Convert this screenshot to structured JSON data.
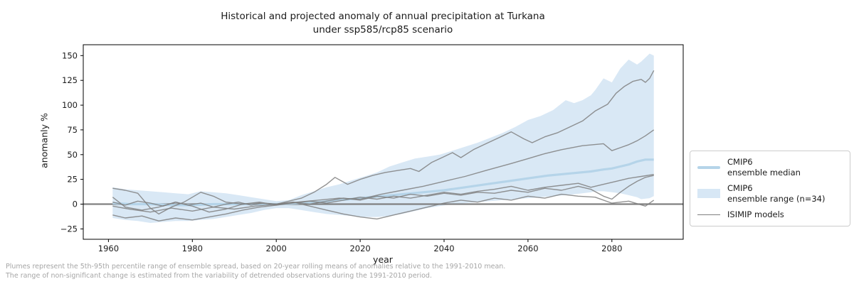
{
  "title": {
    "line1": "Historical and projected anomaly of annual precipitation at Turkana",
    "line2": "under ssp585/rcp85 scenario"
  },
  "axes": {
    "xlabel": "year",
    "ylabel": "anomanly %"
  },
  "legend": {
    "items": [
      {
        "line1": "CMIP6",
        "line2": "ensemble median",
        "swatch": "median-line-swatch"
      },
      {
        "line1": "CMIP6",
        "line2": "ensemble range (n=34)",
        "swatch": "range-patch-swatch"
      },
      {
        "line1": "ISIMIP models",
        "line2": "",
        "swatch": "gray-line-swatch"
      }
    ]
  },
  "footnote": {
    "line1": "Plumes represent the 5th-95th percentile range of ensemble spread, based on 20-year rolling means of anomalies relative to the 1991-2010 mean.",
    "line2": "The range of non-significant change is estimated from the variability of detrended observations during the 1991-2010 period."
  },
  "chart_data": {
    "type": "line",
    "title": "Historical and projected anomaly of annual precipitation at Turkana under ssp585/rcp85 scenario",
    "xlabel": "year",
    "ylabel": "anomanly %",
    "xlim": [
      1954,
      2097
    ],
    "ylim": [
      -35.5,
      161
    ],
    "x_ticks": [
      1960,
      1980,
      2000,
      2020,
      2040,
      2060,
      2080
    ],
    "y_ticks": [
      -25,
      0,
      25,
      50,
      75,
      100,
      125,
      150
    ],
    "grid": false,
    "legend_position": "outside-right",
    "zero_line": 0,
    "colors": {
      "band": "#d9e8f5",
      "median": "#b5d4e9",
      "isimip": "#7f7f7f",
      "zero": "#808080",
      "spine": "#000000"
    },
    "band": {
      "name": "CMIP6 ensemble range (n=34)",
      "x": [
        1961,
        1964,
        1967,
        1970,
        1973,
        1976,
        1979,
        1982,
        1985,
        1988,
        1991,
        1994,
        1997,
        2000,
        2003,
        2006,
        2009,
        2012,
        2015,
        2018,
        2021,
        2024,
        2027,
        2030,
        2033,
        2036,
        2039,
        2042,
        2045,
        2048,
        2051,
        2054,
        2057,
        2060,
        2063,
        2066,
        2069,
        2071,
        2073,
        2075,
        2076,
        2078,
        2080,
        2082,
        2084,
        2086,
        2087,
        2089,
        2090
      ],
      "upper": [
        17,
        15,
        14,
        13,
        12,
        11,
        10,
        13,
        12,
        11,
        9,
        7,
        5,
        3,
        4,
        9,
        13,
        17,
        20,
        24,
        28,
        32,
        38,
        42,
        46,
        48,
        50,
        54,
        58,
        62,
        67,
        72,
        78,
        85,
        89,
        95,
        105,
        102,
        105,
        110,
        115,
        127,
        123,
        137,
        146,
        141,
        144,
        152,
        150
      ],
      "lower": [
        -14,
        -16,
        -17,
        -19,
        -18,
        -17,
        -17,
        -16,
        -15,
        -13,
        -11,
        -9,
        -6,
        -4,
        -4,
        -6,
        -8,
        -10,
        -11,
        -12,
        -13,
        -13,
        -12,
        -10,
        -7,
        -4,
        -2,
        0,
        1,
        2,
        3,
        4,
        5,
        6,
        7,
        8,
        9,
        10,
        11,
        12,
        13,
        13,
        12,
        11,
        9,
        7,
        5,
        6,
        8
      ]
    },
    "median": {
      "name": "CMIP6 ensemble median",
      "x": [
        1961,
        1965,
        1970,
        1975,
        1980,
        1985,
        1990,
        1995,
        2000,
        2005,
        2010,
        2015,
        2020,
        2025,
        2030,
        2035,
        2040,
        2045,
        2050,
        2055,
        2060,
        2065,
        2070,
        2075,
        2078,
        2080,
        2082,
        2084,
        2086,
        2088,
        2090
      ],
      "y": [
        1,
        0,
        0,
        -1,
        -1,
        0,
        0,
        0,
        0,
        1,
        2,
        4,
        6,
        8,
        10,
        12,
        14,
        17,
        20,
        23,
        26,
        29,
        31,
        33,
        35,
        36,
        38,
        40,
        43,
        45,
        45
      ]
    },
    "isimip": {
      "name": "ISIMIP models",
      "series": [
        {
          "x": [
            1961,
            1964,
            1967,
            1970,
            1973,
            1976,
            1979,
            1982,
            1985,
            1988,
            1991,
            1994,
            1997,
            2000,
            2003,
            2006,
            2009,
            2012,
            2014,
            2017,
            2020,
            2023,
            2026,
            2029,
            2032,
            2034,
            2037,
            2040,
            2042,
            2044,
            2047,
            2050,
            2053,
            2056,
            2059,
            2061,
            2064,
            2067,
            2070,
            2073,
            2076,
            2079,
            2081,
            2083,
            2085,
            2087,
            2088,
            2089,
            2090
          ],
          "y": [
            2,
            -1,
            3,
            1,
            -2,
            2,
            -1,
            1,
            -3,
            0,
            2,
            -1,
            1,
            0,
            3,
            6,
            12,
            20,
            27,
            20,
            25,
            29,
            32,
            34,
            36,
            33,
            42,
            48,
            52,
            47,
            55,
            61,
            67,
            73,
            66,
            62,
            68,
            72,
            78,
            84,
            94,
            101,
            112,
            119,
            124,
            126,
            123,
            127,
            135
          ]
        },
        {
          "x": [
            1961,
            1965,
            1970,
            1975,
            1980,
            1985,
            1990,
            1995,
            2000,
            2005,
            2010,
            2015,
            2020,
            2025,
            2030,
            2035,
            2040,
            2045,
            2050,
            2056,
            2060,
            2064,
            2068,
            2073,
            2078,
            2080,
            2082,
            2084,
            2086,
            2088,
            2090
          ],
          "y": [
            -2,
            -5,
            -8,
            -4,
            -7,
            -3,
            -5,
            -2,
            0,
            2,
            4,
            6,
            5,
            10,
            14,
            18,
            23,
            28,
            34,
            41,
            46,
            51,
            55,
            59,
            61,
            54,
            57,
            60,
            64,
            69,
            75
          ]
        },
        {
          "x": [
            1961,
            1964,
            1967,
            1970,
            1972,
            1975,
            1978,
            1982,
            1985,
            1988,
            1992,
            1996,
            2000,
            2004,
            2008,
            2012,
            2016,
            2020,
            2024,
            2028,
            2032,
            2036,
            2040,
            2044,
            2048,
            2052,
            2056,
            2060,
            2064,
            2068,
            2072,
            2075,
            2078,
            2081,
            2084,
            2087,
            2090
          ],
          "y": [
            16,
            14,
            11,
            -4,
            -10,
            -3,
            2,
            12,
            8,
            2,
            0,
            2,
            -1,
            1,
            3,
            1,
            4,
            7,
            5,
            8,
            6,
            9,
            12,
            10,
            13,
            15,
            18,
            14,
            17,
            19,
            21,
            17,
            20,
            23,
            26,
            28,
            30
          ]
        },
        {
          "x": [
            1961,
            1964,
            1968,
            1972,
            1976,
            1980,
            1984,
            1988,
            1992,
            1996,
            2000,
            2004,
            2008,
            2012,
            2016,
            2020,
            2024,
            2028,
            2032,
            2036,
            2040,
            2044,
            2048,
            2052,
            2056,
            2060,
            2064,
            2068,
            2072,
            2075,
            2078,
            2080,
            2082,
            2084,
            2086,
            2088,
            2090
          ],
          "y": [
            7,
            -3,
            -6,
            -3,
            2,
            -2,
            -8,
            -5,
            0,
            1,
            0,
            2,
            0,
            3,
            6,
            4,
            8,
            6,
            10,
            8,
            11,
            9,
            12,
            11,
            14,
            12,
            16,
            14,
            18,
            15,
            8,
            5,
            12,
            18,
            23,
            27,
            29
          ]
        },
        {
          "x": [
            1961,
            1964,
            1968,
            1972,
            1976,
            1980,
            1984,
            1988,
            1992,
            1996,
            2000,
            2004,
            2008,
            2012,
            2016,
            2020,
            2024,
            2028,
            2032,
            2036,
            2040,
            2044,
            2048,
            2052,
            2056,
            2060,
            2064,
            2068,
            2072,
            2076,
            2080,
            2084,
            2088,
            2090
          ],
          "y": [
            -11,
            -14,
            -12,
            -17,
            -14,
            -16,
            -13,
            -10,
            -6,
            -3,
            -1,
            2,
            -2,
            -6,
            -10,
            -13,
            -15,
            -11,
            -7,
            -3,
            1,
            4,
            2,
            6,
            4,
            8,
            6,
            10,
            8,
            7,
            1,
            3,
            -2,
            4
          ]
        }
      ]
    }
  }
}
